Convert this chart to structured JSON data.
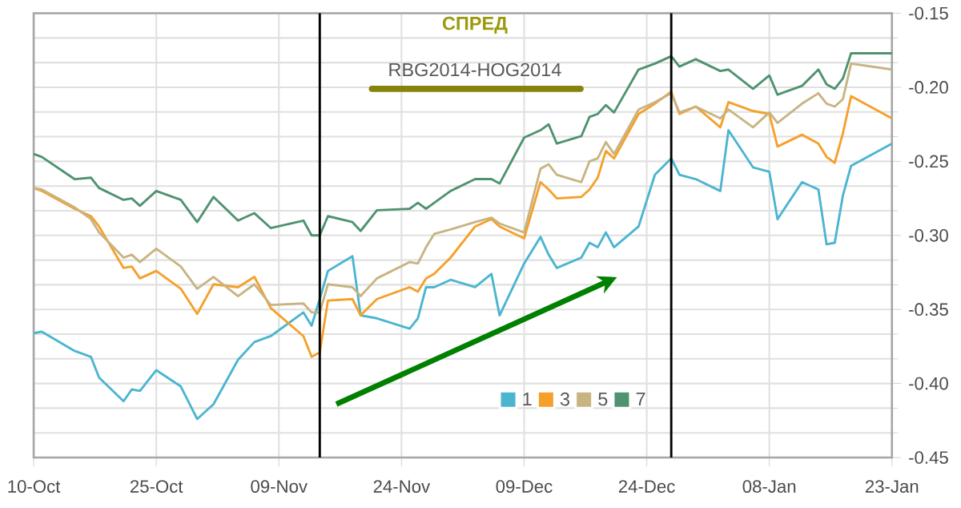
{
  "chart_data": {
    "type": "line",
    "title": "СПРЕД",
    "subtitle": "RBG2014-HOG2014",
    "x": [
      "2013-10-10",
      "2013-10-11",
      "2013-10-15",
      "2013-10-17",
      "2013-10-18",
      "2013-10-21",
      "2013-10-22",
      "2013-10-23",
      "2013-10-25",
      "2013-10-28",
      "2013-10-30",
      "2013-11-01",
      "2013-11-04",
      "2013-11-06",
      "2013-11-08",
      "2013-11-12",
      "2013-11-13",
      "2013-11-14",
      "2013-11-15",
      "2013-11-18",
      "2013-11-19",
      "2013-11-21",
      "2013-11-25",
      "2013-11-26",
      "2013-11-27",
      "2013-11-28",
      "2013-11-30",
      "2013-12-03",
      "2013-12-05",
      "2013-12-06",
      "2013-12-09",
      "2013-12-11",
      "2013-12-12",
      "2013-12-13",
      "2013-12-16",
      "2013-12-17",
      "2013-12-18",
      "2013-12-19",
      "2013-12-20",
      "2013-12-23",
      "2013-12-25",
      "2013-12-27",
      "2013-12-28",
      "2013-12-30",
      "2014-01-02",
      "2014-01-03",
      "2014-01-06",
      "2014-01-08",
      "2014-01-09",
      "2014-01-12",
      "2014-01-14",
      "2014-01-15",
      "2014-01-16",
      "2014-01-17",
      "2014-01-18",
      "2014-01-23"
    ],
    "series": [
      {
        "name": "1",
        "color": "#4bb5d0",
        "values": [
          -0.366,
          -0.365,
          -0.378,
          -0.382,
          -0.396,
          -0.412,
          -0.404,
          -0.405,
          -0.391,
          -0.402,
          -0.424,
          -0.414,
          -0.384,
          -0.372,
          -0.368,
          -0.352,
          -0.361,
          -0.343,
          -0.324,
          -0.314,
          -0.354,
          -0.356,
          -0.363,
          -0.356,
          -0.335,
          -0.335,
          -0.33,
          -0.335,
          -0.326,
          -0.354,
          -0.319,
          -0.301,
          -0.313,
          -0.322,
          -0.315,
          -0.305,
          -0.308,
          -0.298,
          -0.308,
          -0.294,
          -0.259,
          -0.248,
          -0.259,
          -0.262,
          -0.27,
          -0.229,
          -0.254,
          -0.257,
          -0.289,
          -0.264,
          -0.269,
          -0.306,
          -0.305,
          -0.273,
          -0.253,
          -0.238
        ]
      },
      {
        "name": "3",
        "color": "#f5a02a",
        "values": [
          -0.268,
          -0.27,
          -0.282,
          -0.287,
          -0.294,
          -0.322,
          -0.321,
          -0.329,
          -0.324,
          -0.336,
          -0.353,
          -0.333,
          -0.335,
          -0.328,
          -0.349,
          -0.368,
          -0.382,
          -0.379,
          -0.344,
          -0.343,
          -0.354,
          -0.343,
          -0.335,
          -0.338,
          -0.329,
          -0.326,
          -0.315,
          -0.294,
          -0.289,
          -0.294,
          -0.302,
          -0.264,
          -0.269,
          -0.275,
          -0.274,
          -0.269,
          -0.261,
          -0.243,
          -0.248,
          -0.218,
          -0.211,
          -0.203,
          -0.218,
          -0.213,
          -0.227,
          -0.21,
          -0.216,
          -0.218,
          -0.24,
          -0.232,
          -0.238,
          -0.247,
          -0.251,
          -0.231,
          -0.206,
          -0.221
        ]
      },
      {
        "name": "5",
        "color": "#c8b483",
        "values": [
          -0.268,
          -0.269,
          -0.281,
          -0.289,
          -0.298,
          -0.315,
          -0.313,
          -0.318,
          -0.309,
          -0.321,
          -0.336,
          -0.328,
          -0.341,
          -0.333,
          -0.347,
          -0.346,
          -0.352,
          -0.352,
          -0.333,
          -0.335,
          -0.341,
          -0.329,
          -0.318,
          -0.319,
          -0.308,
          -0.299,
          -0.296,
          -0.291,
          -0.288,
          -0.292,
          -0.298,
          -0.255,
          -0.252,
          -0.259,
          -0.264,
          -0.25,
          -0.248,
          -0.237,
          -0.245,
          -0.215,
          -0.21,
          -0.204,
          -0.217,
          -0.213,
          -0.221,
          -0.215,
          -0.227,
          -0.217,
          -0.224,
          -0.211,
          -0.204,
          -0.211,
          -0.213,
          -0.208,
          -0.184,
          -0.188
        ]
      },
      {
        "name": "7",
        "color": "#4f9270",
        "values": [
          -0.245,
          -0.247,
          -0.262,
          -0.261,
          -0.268,
          -0.276,
          -0.275,
          -0.28,
          -0.27,
          -0.276,
          -0.291,
          -0.274,
          -0.29,
          -0.285,
          -0.295,
          -0.29,
          -0.3,
          -0.3,
          -0.287,
          -0.291,
          -0.297,
          -0.283,
          -0.282,
          -0.278,
          -0.282,
          -0.278,
          -0.27,
          -0.262,
          -0.262,
          -0.265,
          -0.234,
          -0.229,
          -0.225,
          -0.238,
          -0.233,
          -0.22,
          -0.218,
          -0.212,
          -0.217,
          -0.188,
          -0.184,
          -0.179,
          -0.186,
          -0.181,
          -0.189,
          -0.188,
          -0.201,
          -0.192,
          -0.205,
          -0.199,
          -0.188,
          -0.198,
          -0.201,
          -0.194,
          -0.177,
          -0.177
        ]
      }
    ],
    "xlim": [
      "2013-10-10",
      "2014-01-23"
    ],
    "xticks": [
      {
        "value": "2013-10-10",
        "label": "10-Oct"
      },
      {
        "value": "2013-10-25",
        "label": "25-Oct"
      },
      {
        "value": "2013-11-09",
        "label": "09-Nov"
      },
      {
        "value": "2013-11-24",
        "label": "24-Nov"
      },
      {
        "value": "2013-12-09",
        "label": "09-Dec"
      },
      {
        "value": "2013-12-24",
        "label": "24-Dec"
      },
      {
        "value": "2014-01-08",
        "label": "08-Jan"
      },
      {
        "value": "2014-01-23",
        "label": "23-Jan"
      }
    ],
    "ylim": [
      -0.45,
      -0.15
    ],
    "yticks": [
      {
        "value": -0.45,
        "label": "-0.45"
      },
      {
        "value": -0.4,
        "label": "-0.40"
      },
      {
        "value": -0.35,
        "label": "-0.35"
      },
      {
        "value": -0.3,
        "label": "-0.30"
      },
      {
        "value": -0.25,
        "label": "-0.25"
      },
      {
        "value": -0.2,
        "label": "-0.20"
      },
      {
        "value": -0.15,
        "label": "-0.15"
      }
    ],
    "ref_lines": [
      {
        "axis": "x",
        "value": "2013-11-14",
        "color": "#000000"
      },
      {
        "axis": "x",
        "value": "2013-12-27",
        "color": "#000000"
      }
    ],
    "grid": true,
    "legend": "bottom"
  }
}
